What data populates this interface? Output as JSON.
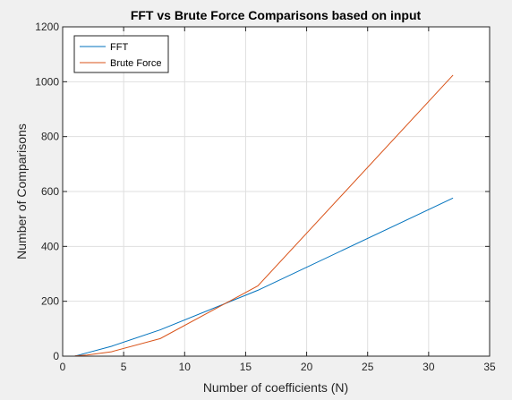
{
  "chart_data": {
    "type": "line",
    "title": "FFT vs Brute Force Comparisons based on input",
    "xlabel": "Number of coefficients (N)",
    "ylabel": "Number of Comparisons",
    "xlim": [
      0,
      35
    ],
    "ylim": [
      0,
      1200
    ],
    "xticks": [
      0,
      5,
      10,
      15,
      20,
      25,
      30,
      35
    ],
    "yticks": [
      0,
      200,
      400,
      600,
      800,
      1000,
      1200
    ],
    "grid": true,
    "legend_position": "top-left",
    "series": [
      {
        "name": "FFT",
        "color": "#0072bd",
        "x": [
          1,
          2,
          4,
          8,
          16,
          32
        ],
        "y": [
          0,
          12,
          36,
          96,
          240,
          576
        ]
      },
      {
        "name": "Brute Force",
        "color": "#d95319",
        "x": [
          1,
          2,
          4,
          8,
          16,
          32
        ],
        "y": [
          1,
          4,
          16,
          64,
          256,
          1024
        ]
      }
    ]
  }
}
